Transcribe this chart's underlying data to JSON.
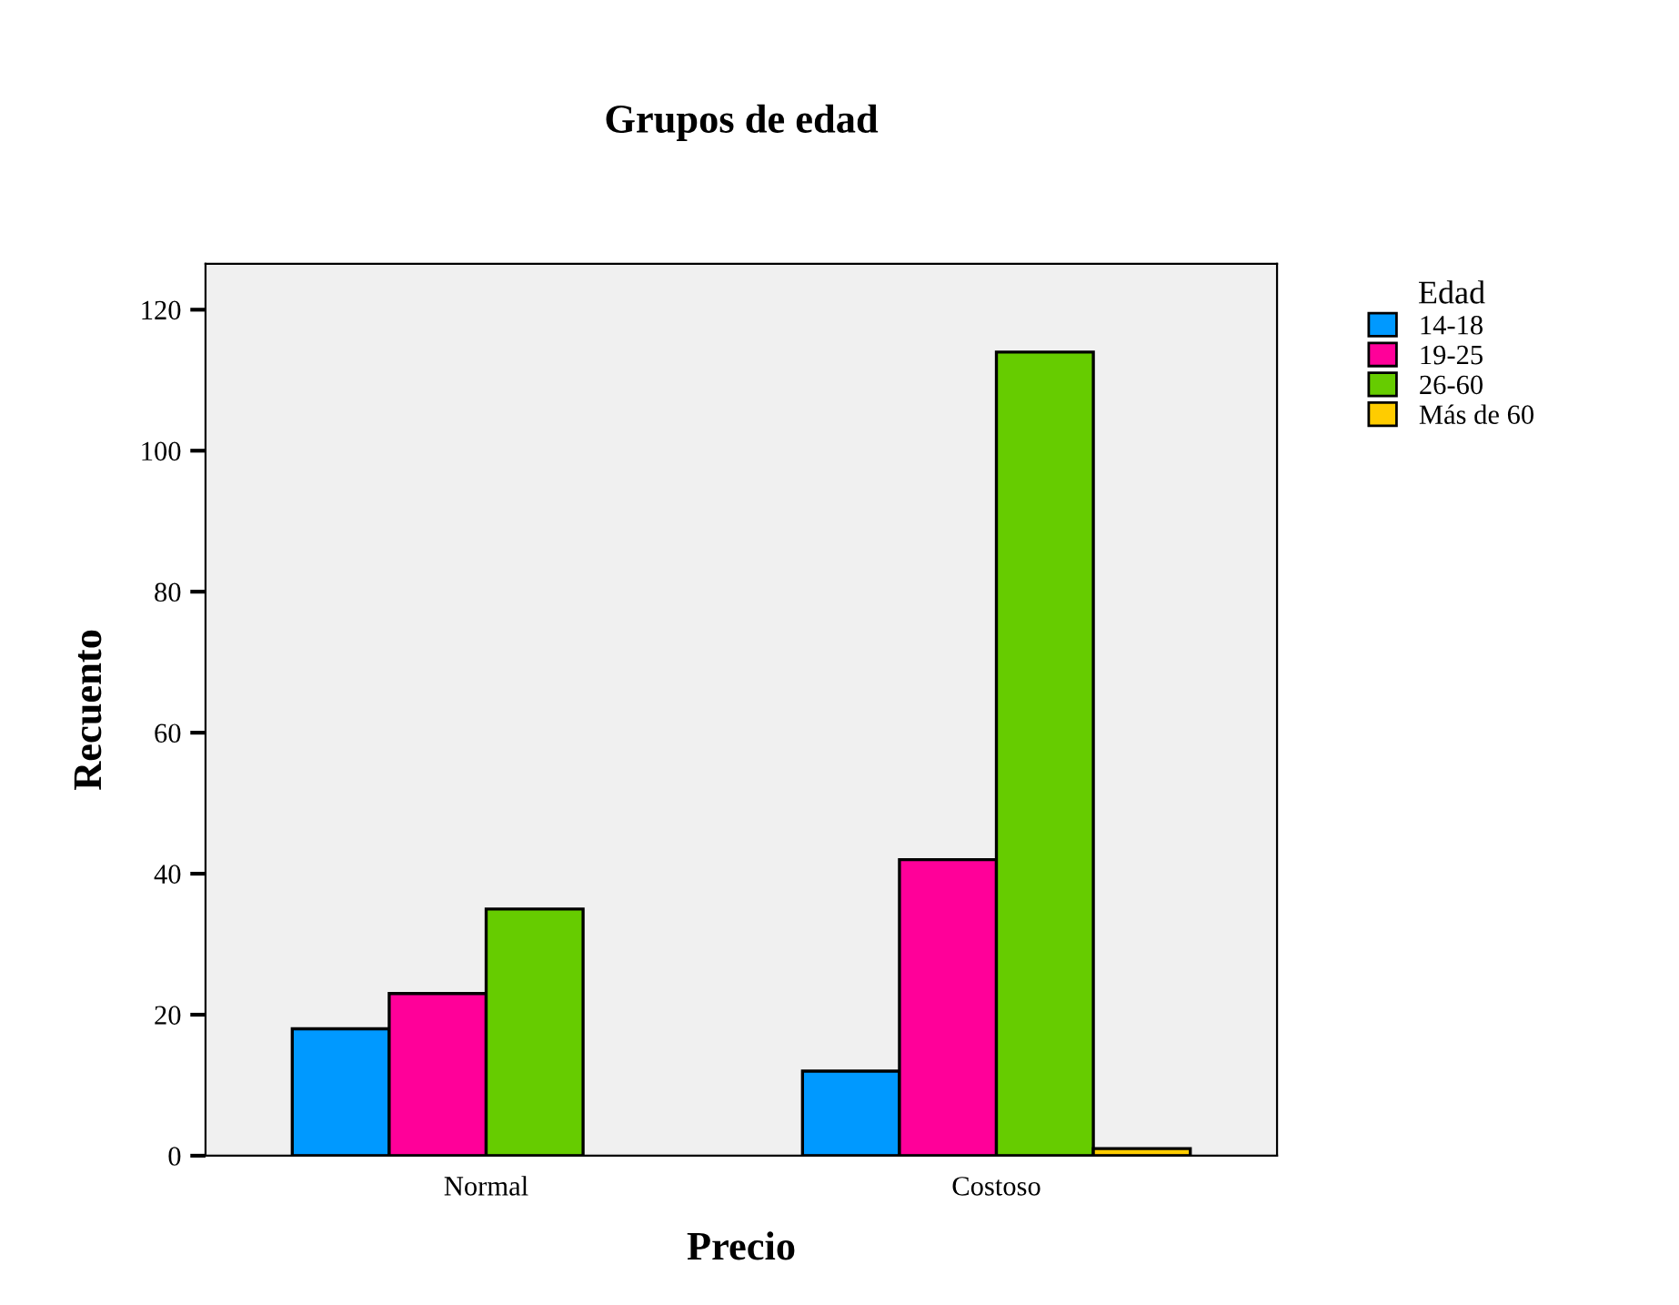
{
  "chart_data": {
    "type": "bar",
    "title": "Grupos de edad",
    "xlabel": "Precio",
    "ylabel": "Recuento",
    "legend_title": "Edad",
    "categories": [
      "Normal",
      "Costoso"
    ],
    "series": [
      {
        "name": "14-18",
        "color": "#0099ff",
        "values": [
          18,
          12
        ]
      },
      {
        "name": "19-25",
        "color": "#ff0099",
        "values": [
          23,
          42
        ]
      },
      {
        "name": "26-60",
        "color": "#66cc00",
        "values": [
          35,
          114
        ]
      },
      {
        "name": "Más de 60",
        "color": "#ffcc00",
        "values": [
          null,
          1
        ]
      }
    ],
    "ylim": [
      0,
      126.5
    ],
    "yticks": [
      0,
      20,
      40,
      60,
      80,
      100,
      120
    ],
    "grid": false,
    "legend": "top right"
  }
}
